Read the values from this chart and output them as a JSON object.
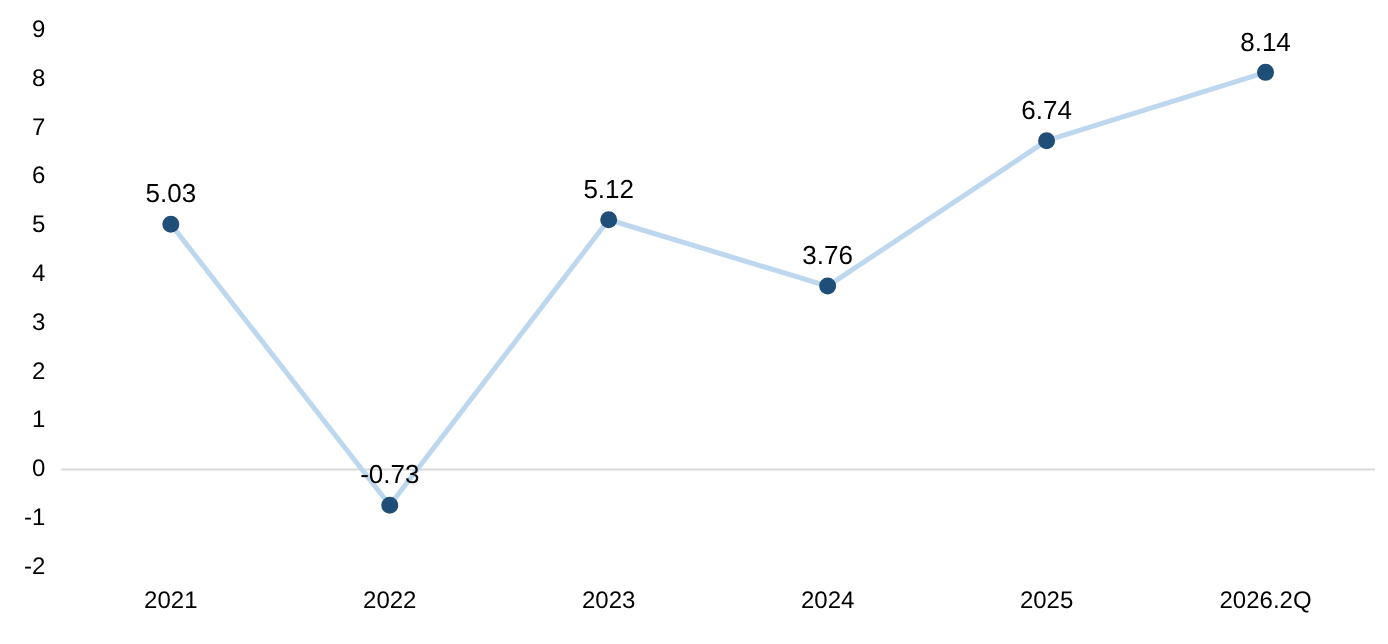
{
  "chart_data": {
    "type": "line",
    "categories": [
      "2021",
      "2022",
      "2023",
      "2024",
      "2025",
      "2026.2Q"
    ],
    "series": [
      {
        "color": "#bdd7ee",
        "colors": [
          "#1f4e79",
          "#1f4e79",
          "#1f4e79",
          "#1f4e79",
          "#1f4e79",
          "#1f4e79"
        ],
        "values": [
          5.03,
          -0.73,
          5.12,
          3.76,
          6.74,
          8.14
        ]
      }
    ],
    "ylim": [
      -2,
      9
    ],
    "yticks": [
      -2,
      -1,
      0,
      1,
      2,
      3,
      4,
      5,
      6,
      7,
      8,
      9
    ],
    "grid": false,
    "legend": false,
    "marker": "circle",
    "line_style": "solid",
    "data_labels": true,
    "ref_lines": [
      {
        "axis": "y",
        "value": 0,
        "color": "#d9d9d9"
      }
    ]
  }
}
